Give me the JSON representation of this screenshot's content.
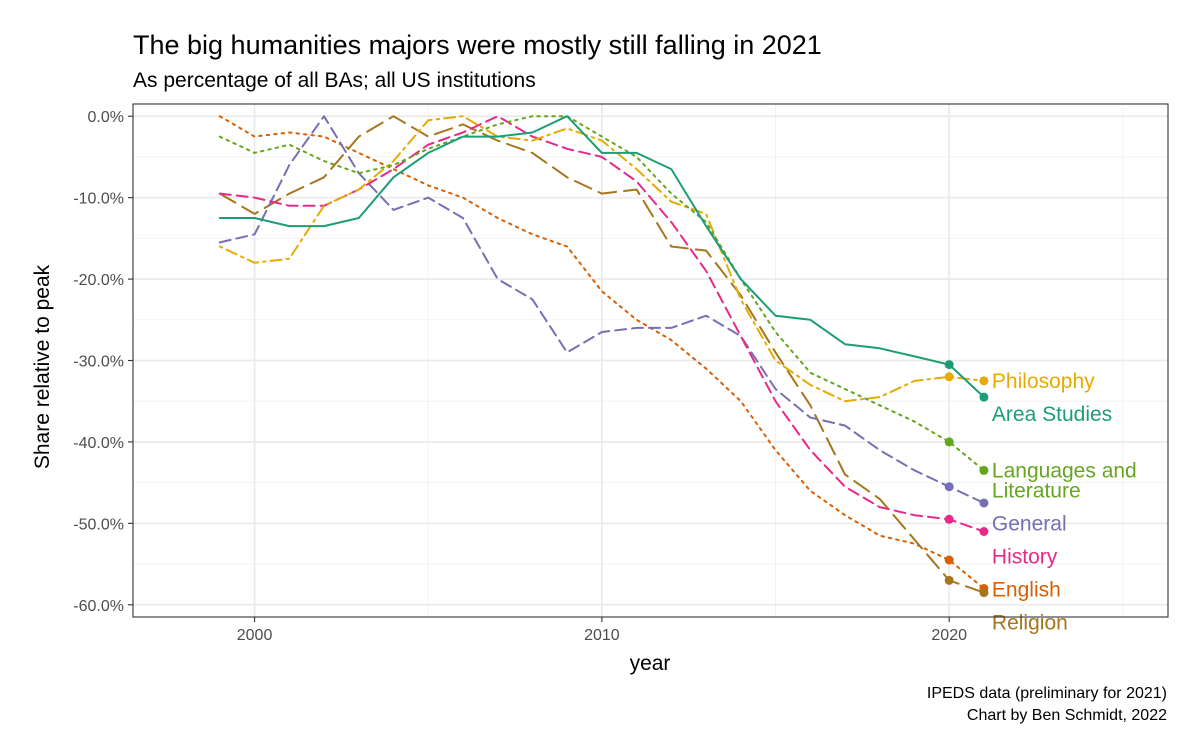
{
  "chart_data": {
    "type": "line",
    "title": "The big humanities majors were mostly still falling in 2021",
    "subtitle": "As percentage of all BAs; all US institutions",
    "xlabel": "year",
    "ylabel": "Share relative to peak",
    "caption_lines": [
      "IPEDS data (preliminary for 2021)",
      "Chart by Ben Schmidt, 2022"
    ],
    "xlim": [
      1996.5,
      2026.3
    ],
    "ylim": [
      -61.5,
      1.5
    ],
    "x_ticks": [
      2000,
      2010,
      2020
    ],
    "x_tick_labels": [
      "2000",
      "2010",
      "2020"
    ],
    "y_ticks": [
      0,
      -10,
      -20,
      -30,
      -40,
      -50,
      -60
    ],
    "y_tick_labels": [
      "0.0%",
      "-10.0%",
      "-20.0%",
      "-30.0%",
      "-40.0%",
      "-50.0%",
      "-60.0%"
    ],
    "grid": true,
    "legend": "direct labels at line ends",
    "x": [
      1999,
      2000,
      2001,
      2002,
      2003,
      2004,
      2005,
      2006,
      2007,
      2008,
      2009,
      2010,
      2011,
      2012,
      2013,
      2014,
      2015,
      2016,
      2017,
      2018,
      2019,
      2020,
      2021
    ],
    "series": [
      {
        "name": "English",
        "label_lines": [
          "English"
        ],
        "color": "#D95F02",
        "dash": "dotted",
        "values": [
          0,
          -2.5,
          -2,
          -2.5,
          -4.5,
          -6.5,
          -8.5,
          -10,
          -12.5,
          -14.5,
          -16,
          -21.5,
          -25,
          -27.5,
          -31,
          -35,
          -41,
          -46,
          -49,
          -51.5,
          -52.5,
          -54.5,
          -58
        ]
      },
      {
        "name": "Religion",
        "label_lines": [
          "Religion"
        ],
        "color": "#A6761D",
        "dash": "longdash",
        "values": [
          -9.5,
          -12,
          -9.5,
          -7.5,
          -2.5,
          0,
          -2.5,
          -1,
          -3,
          -4.5,
          -7.5,
          -9.5,
          -9,
          -16,
          -16.5,
          -22,
          -29,
          -35.5,
          -44,
          -47,
          -52,
          -57,
          -58.5
        ]
      },
      {
        "name": "General",
        "label_lines": [
          "General"
        ],
        "color": "#7570B3",
        "dash": "dashed",
        "values": [
          -15.5,
          -14.5,
          -6,
          0,
          -7,
          -11.5,
          -10,
          -12.5,
          -20,
          -22.5,
          -29,
          -26.5,
          -26,
          -26,
          -24.5,
          -27,
          -33.5,
          -37,
          -38,
          -41,
          -43.5,
          -45.5,
          -47.5
        ]
      },
      {
        "name": "History",
        "label_lines": [
          "History"
        ],
        "color": "#E7298A",
        "dash": "dashed",
        "values": [
          -9.5,
          -10,
          -11,
          -11,
          -9,
          -6.5,
          -3.5,
          -2,
          0,
          -2.5,
          -4,
          -5,
          -8,
          -13,
          -19,
          -27,
          -35,
          -41,
          -45.5,
          -48,
          -49,
          -49.5,
          -51
        ]
      },
      {
        "name": "Philosophy",
        "label_lines": [
          "Philosophy"
        ],
        "color": "#E6AB02",
        "dash": "dotdash",
        "values": [
          -16,
          -18,
          -17.5,
          -11,
          -9,
          -5.5,
          -0.5,
          0,
          -2.5,
          -3,
          -1.5,
          -3,
          -6.5,
          -10.5,
          -12,
          -22.5,
          -30,
          -33,
          -35,
          -34.5,
          -32.5,
          -32,
          -32.5
        ]
      },
      {
        "name": "Languages and Literature",
        "label_lines": [
          "Languages and",
          "Literature"
        ],
        "color": "#66A61E",
        "dash": "dotted",
        "values": [
          -2.5,
          -4.5,
          -3.5,
          -5.5,
          -7,
          -6,
          -4,
          -2.5,
          -1,
          0,
          0,
          -2.5,
          -5,
          -9.5,
          -13,
          -20,
          -26.5,
          -31.5,
          -33.5,
          -35.5,
          -37.5,
          -40,
          -43.5
        ]
      },
      {
        "name": "Area Studies",
        "label_lines": [
          "Area Studies"
        ],
        "color": "#1B9E77",
        "dash": "solid",
        "values": [
          -12.5,
          -12.5,
          -13.5,
          -13.5,
          -12.5,
          -7.5,
          -4.5,
          -2.5,
          -2.5,
          -2,
          0,
          -4.5,
          -4.5,
          -6.5,
          -13.5,
          -20,
          -24.5,
          -25,
          -28,
          -28.5,
          -29.5,
          -30.5,
          -34.5
        ]
      }
    ]
  }
}
